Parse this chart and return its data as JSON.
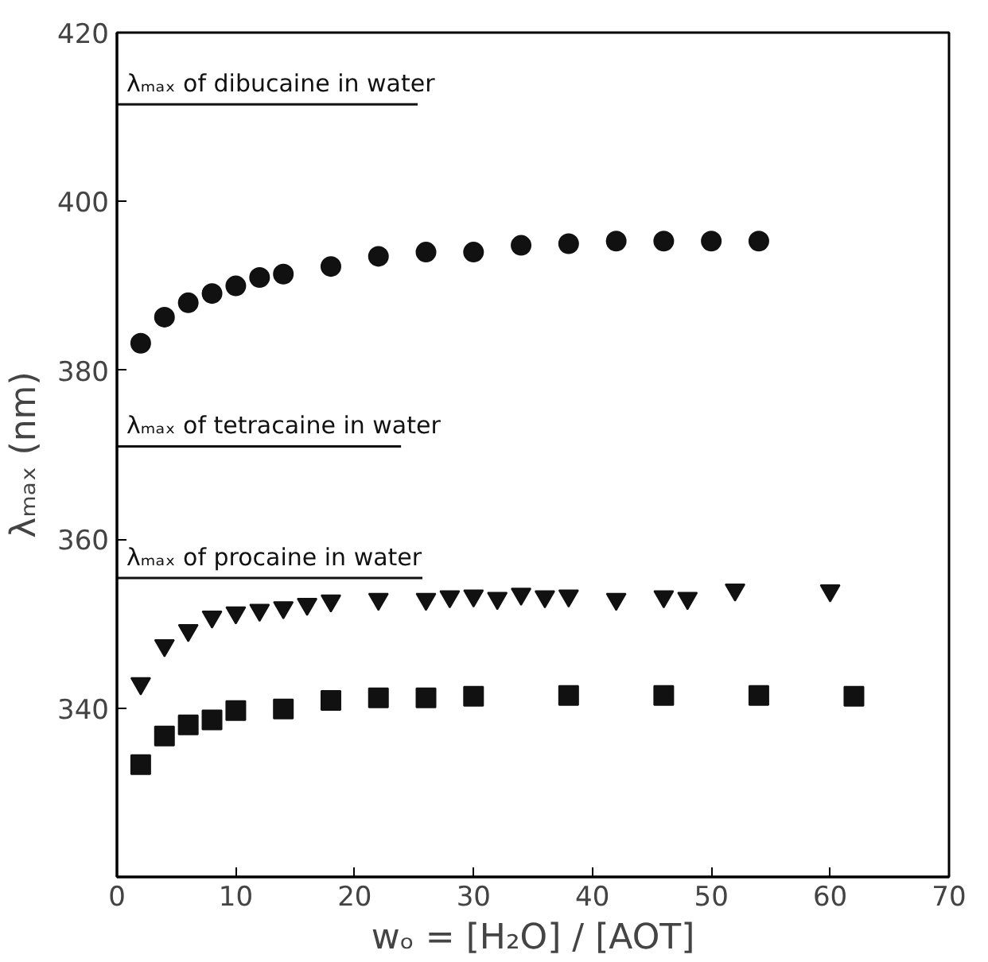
{
  "chart_data": {
    "type": "scatter",
    "xlabel": "wₒ = [H₂O] / [AOT]",
    "ylabel": "λₘₐₓ (nm)",
    "xlim": [
      0,
      70
    ],
    "xticks": [
      0,
      10,
      20,
      30,
      40,
      50,
      60,
      70
    ],
    "ylim": [
      320,
      420
    ],
    "yticks": [
      340,
      360,
      380,
      400,
      420
    ],
    "grid": false,
    "legend": false,
    "series": [
      {
        "marker": "circle",
        "color": "#111111",
        "x": [
          2,
          4,
          6,
          8,
          10,
          12,
          14,
          18,
          22,
          26,
          30,
          34,
          38,
          42,
          46,
          50,
          54
        ],
        "values": [
          383.2,
          386.3,
          388.0,
          389.1,
          390.0,
          391.0,
          391.4,
          392.3,
          393.5,
          394.0,
          394.0,
          394.8,
          395.0,
          395.3,
          395.3,
          395.3,
          395.3
        ]
      },
      {
        "marker": "triangle",
        "color": "#111111",
        "x": [
          2,
          4,
          6,
          8,
          10,
          12,
          14,
          16,
          18,
          22,
          26,
          28,
          30,
          32,
          34,
          36,
          38,
          42,
          46,
          48,
          52,
          60
        ],
        "values": [
          342.9,
          347.4,
          349.2,
          350.8,
          351.3,
          351.6,
          351.9,
          352.3,
          352.7,
          352.9,
          352.9,
          353.2,
          353.3,
          353.0,
          353.5,
          353.2,
          353.3,
          352.9,
          353.2,
          353.0,
          354.0,
          353.9
        ]
      },
      {
        "marker": "square",
        "color": "#111111",
        "x": [
          2,
          4,
          6,
          8,
          10,
          14,
          18,
          22,
          26,
          30,
          38,
          46,
          54,
          62
        ],
        "values": [
          333.3,
          336.7,
          338.0,
          338.6,
          339.7,
          339.9,
          340.9,
          341.2,
          341.2,
          341.4,
          341.5,
          341.5,
          341.5,
          341.4
        ]
      },
      {
        "type": "line",
        "name": "λₘₐₓ of dibucaine in water",
        "color": "#111111",
        "line_style": "solid",
        "x": [
          0,
          25.3
        ],
        "values": [
          411.5,
          411.5
        ]
      },
      {
        "type": "line",
        "name": "λₘₐₓ of tetracaine in water",
        "color": "#111111",
        "line_style": "solid",
        "x": [
          0,
          23.9
        ],
        "values": [
          371.0,
          371.0
        ]
      },
      {
        "type": "line",
        "name": "λₘₐₓ of procaine in water",
        "color": "#111111",
        "line_style": "solid",
        "x": [
          0,
          25.7
        ],
        "values": [
          355.4,
          355.4
        ]
      }
    ]
  }
}
